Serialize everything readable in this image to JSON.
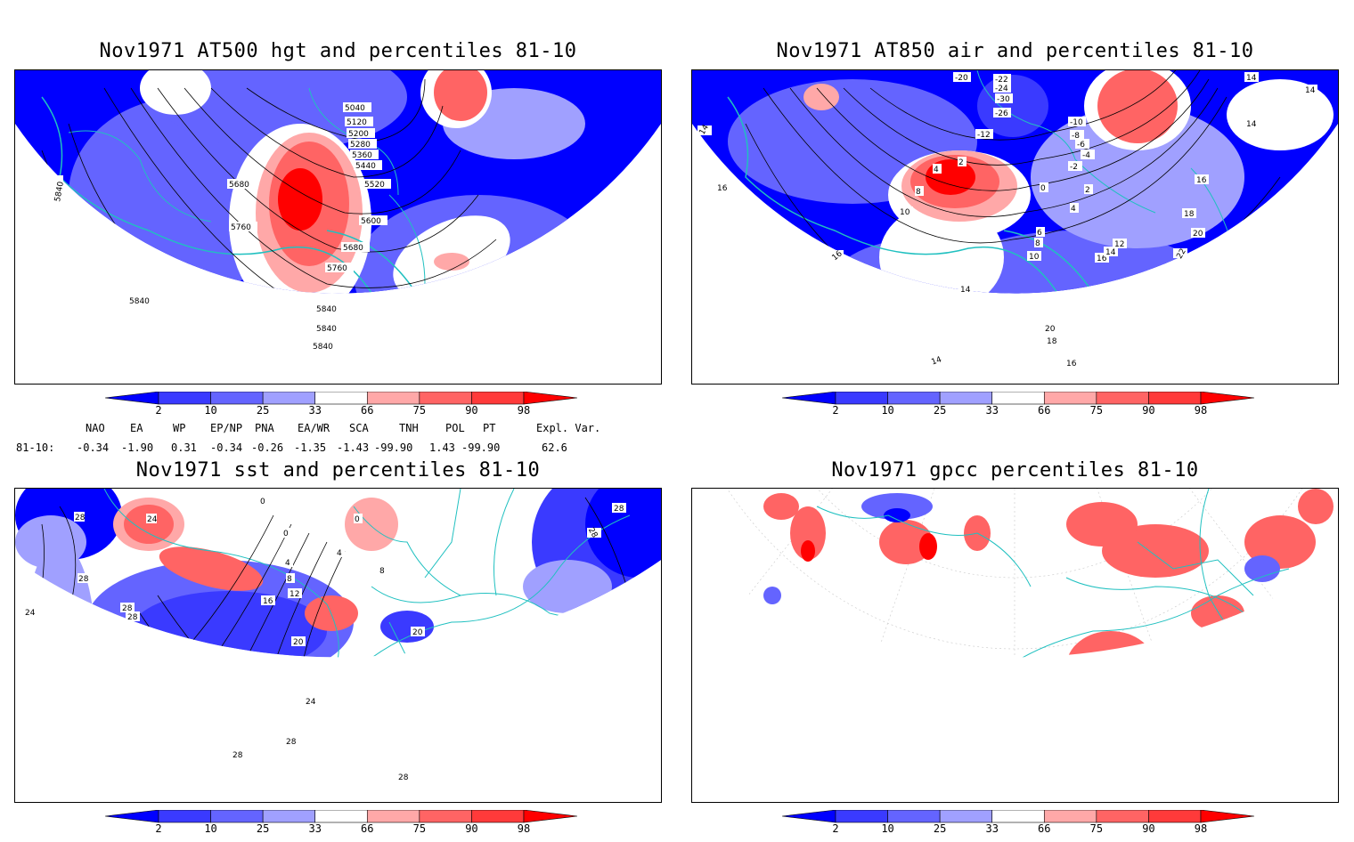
{
  "panels": {
    "hgt": {
      "title": "Nov1971 AT500 hgt and percentiles 81-10",
      "contour_labels": [
        "5040",
        "5120",
        "5200",
        "5280",
        "5360",
        "5440",
        "5520",
        "5600",
        "5680",
        "5760",
        "5840",
        "5840",
        "5840",
        "5840",
        "5680",
        "5760",
        "5840"
      ]
    },
    "air": {
      "title": "Nov1971 AT850 air and percentiles 81-10",
      "contour_labels": [
        "-20",
        "-22",
        "-24",
        "-30",
        "-26",
        "-12",
        "-10",
        "-8",
        "-6",
        "-4",
        "-2",
        "0",
        "2",
        "4",
        "4",
        "2",
        "8",
        "10",
        "14",
        "14",
        "14",
        "14",
        "16",
        "16",
        "18",
        "20",
        "22",
        "16",
        "14",
        "12",
        "10",
        "8",
        "6",
        "14",
        "20",
        "18",
        "16",
        "14",
        "16"
      ]
    },
    "sst": {
      "title": "Nov1971 sst and percentiles 81-10",
      "contour_labels": [
        "28",
        "24",
        "28",
        "24",
        "28",
        "28",
        "0",
        "0",
        "4",
        "8",
        "12",
        "16",
        "20",
        "24",
        "28",
        "28",
        "28",
        "0",
        "4",
        "8",
        "20",
        "28",
        "28"
      ]
    },
    "gpcc": {
      "title": "Nov1971 gpcc percentiles 81-10"
    }
  },
  "colorbar": {
    "labels": [
      "2",
      "10",
      "25",
      "33",
      "66",
      "75",
      "90",
      "98"
    ],
    "colors": [
      "#0000ff",
      "#3a3aff",
      "#6464ff",
      "#a0a0ff",
      "#ffffff",
      "#ffa8a8",
      "#ff6464",
      "#ff3a3a",
      "#ff0000"
    ]
  },
  "teleconnections": {
    "headers": [
      "NAO",
      "EA",
      "WP",
      "EP/NP",
      "PNA",
      "EA/WR",
      "SCA",
      "TNH",
      "POL",
      "PT",
      "Expl. Var."
    ],
    "row_label": "81-10:",
    "values": [
      "-0.34",
      "-1.90",
      "0.31",
      "-0.34",
      "-0.26",
      "-1.35",
      "-1.43",
      "-99.90",
      "1.43",
      "-99.90",
      "62.6"
    ]
  },
  "colors": {
    "coastline": "#20c0c0",
    "contour": "#000000"
  }
}
